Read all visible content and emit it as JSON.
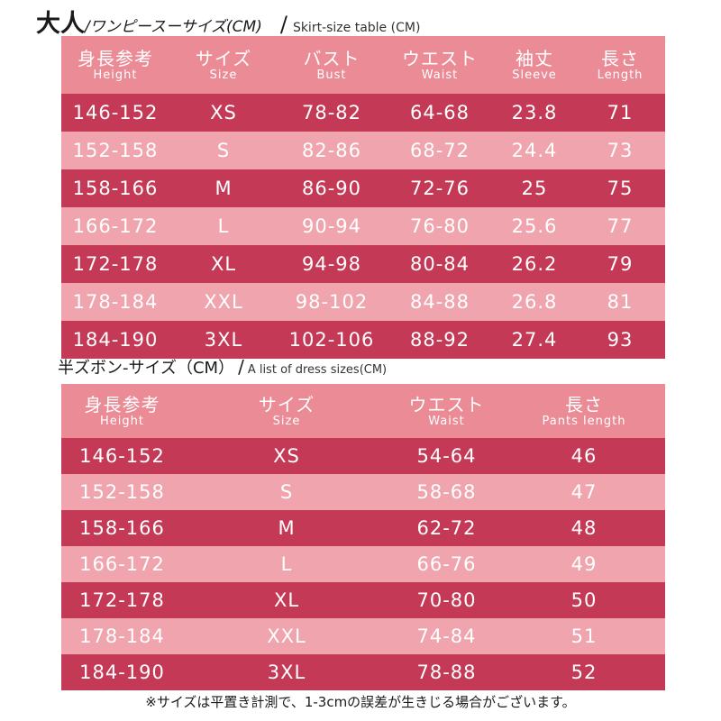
{
  "section1": {
    "title_big": "大人",
    "title_jp": "/ワンピースーサイズ(CM)",
    "title_slash": "/",
    "title_en": "Skirt-size table (CM)",
    "headers": [
      {
        "jp": "身長参考",
        "en": "Height"
      },
      {
        "jp": "サイズ",
        "en": "Size"
      },
      {
        "jp": "バスト",
        "en": "Bust"
      },
      {
        "jp": "ウエスト",
        "en": "Waist"
      },
      {
        "jp": "袖丈",
        "en": "Sleeve"
      },
      {
        "jp": "長さ",
        "en": "Length"
      }
    ],
    "rows": [
      [
        "146-152",
        "XS",
        "78-82",
        "64-68",
        "23.8",
        "71"
      ],
      [
        "152-158",
        "S",
        "82-86",
        "68-72",
        "24.4",
        "73"
      ],
      [
        "158-166",
        "M",
        "86-90",
        "72-76",
        "25",
        "75"
      ],
      [
        "166-172",
        "L",
        "90-94",
        "76-80",
        "25.6",
        "77"
      ],
      [
        "172-178",
        "XL",
        "94-98",
        "80-84",
        "26.2",
        "79"
      ],
      [
        "178-184",
        "XXL",
        "98-102",
        "84-88",
        "26.8",
        "81"
      ],
      [
        "184-190",
        "3XL",
        "102-106",
        "88-92",
        "27.4",
        "93"
      ]
    ]
  },
  "section2": {
    "title_jp": "半ズボン-サイズ（CM）",
    "title_slash": "/",
    "title_en": "A list of dress sizes(CM)",
    "headers": [
      {
        "jp": "身長参考",
        "en": "Height"
      },
      {
        "jp": "サイズ",
        "en": "Size"
      },
      {
        "jp": "ウエスト",
        "en": "Waist"
      },
      {
        "jp": "長さ",
        "en": "Pants length"
      }
    ],
    "rows": [
      [
        "146-152",
        "XS",
        "54-64",
        "46"
      ],
      [
        "152-158",
        "S",
        "58-68",
        "47"
      ],
      [
        "158-166",
        "M",
        "62-72",
        "48"
      ],
      [
        "166-172",
        "L",
        "66-76",
        "49"
      ],
      [
        "172-178",
        "XL",
        "70-80",
        "50"
      ],
      [
        "178-184",
        "XXL",
        "74-84",
        "51"
      ],
      [
        "184-190",
        "3XL",
        "78-88",
        "52"
      ]
    ]
  },
  "note": "※サイズは平置き計測で、1-3cmの誤差が生きじる場合がございます。",
  "colors": {
    "header_bg": "#eb8b96",
    "row_dark": "#c43a56",
    "row_light": "#f0a4ad",
    "text_light": "#ffffff"
  }
}
